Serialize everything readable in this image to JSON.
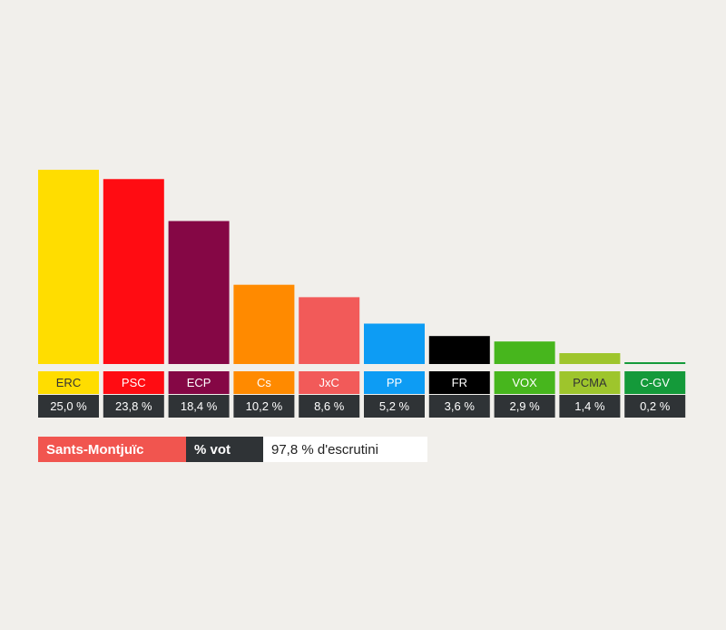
{
  "chart_data": {
    "type": "bar",
    "categories": [
      "ERC",
      "PSC",
      "ECP",
      "Cs",
      "JxC",
      "PP",
      "FR",
      "VOX",
      "PCMA",
      "C-GV"
    ],
    "values": [
      25.0,
      23.8,
      18.4,
      10.2,
      8.6,
      5.2,
      3.6,
      2.9,
      1.4,
      0.2
    ],
    "value_labels": [
      "25,0 %",
      "23,8 %",
      "18,4 %",
      "10,2 %",
      "8,6 %",
      "5,2 %",
      "3,6 %",
      "2,9 %",
      "1,4 %",
      "0,2 %"
    ],
    "colors": [
      "#ffdd00",
      "#ff0c12",
      "#850745",
      "#ff8a00",
      "#f25a59",
      "#0d9cf4",
      "#000000",
      "#47b61d",
      "#9ec52c",
      "#149a3a"
    ],
    "label_text_colors": [
      "#333333",
      "#ffffff",
      "#ffffff",
      "#ffffff",
      "#ffffff",
      "#ffffff",
      "#ffffff",
      "#ffffff",
      "#333333",
      "#ffffff"
    ],
    "ylim": [
      0,
      25.0
    ],
    "title": "",
    "xlabel": "",
    "ylabel": ""
  },
  "footer": {
    "district": "Sants-Montjuïc",
    "metric": "% vot",
    "count_status": "97,8 % d'escrutini"
  }
}
